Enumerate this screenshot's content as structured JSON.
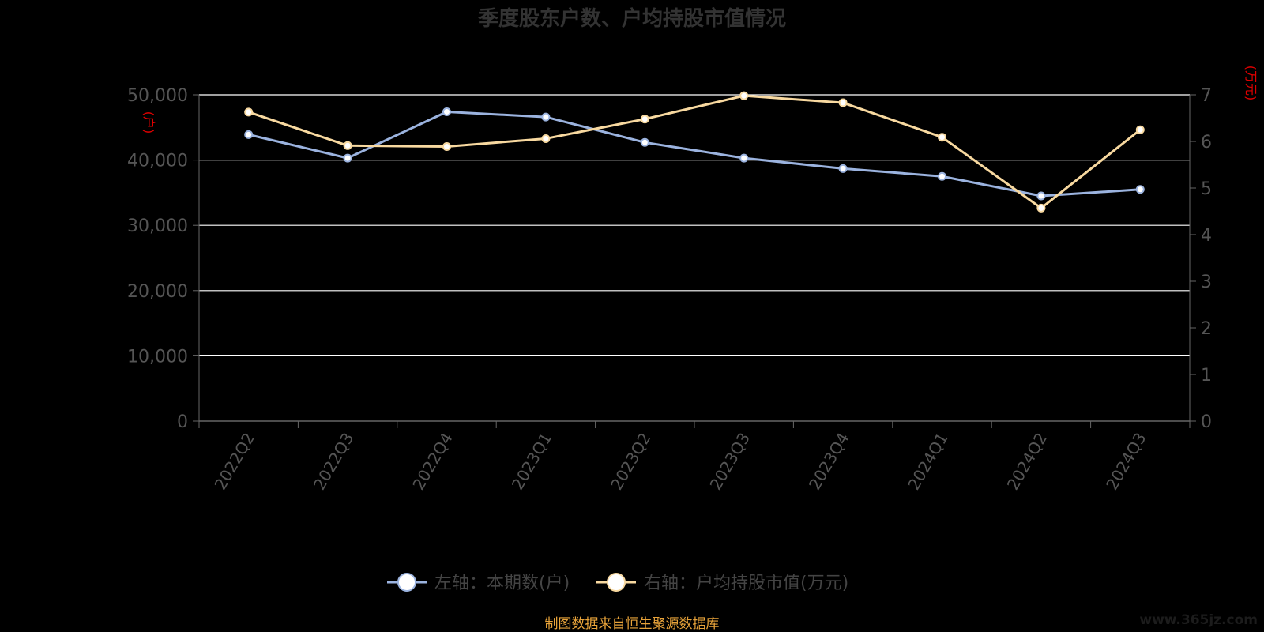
{
  "title": "季度股东户数、户均持股市值情况",
  "left_unit": "(户)",
  "right_unit": "(万元)",
  "source": "制图数据来自恒生聚源数据库",
  "watermark": "www.365jz.com",
  "colors": {
    "left_series": "#9bb3df",
    "right_series": "#f8d9a0",
    "grid": "#ffffff",
    "axis": "#666666",
    "unit": "#e00000",
    "source": "#e8a33a"
  },
  "chart_data": {
    "type": "line",
    "title": "季度股东户数、户均持股市值情况",
    "categories": [
      "2022Q2",
      "2022Q3",
      "2022Q4",
      "2023Q1",
      "2023Q2",
      "2023Q3",
      "2023Q4",
      "2024Q1",
      "2024Q2",
      "2024Q3"
    ],
    "y_left": {
      "ticks": [
        "0",
        "10,000",
        "20,000",
        "30,000",
        "40,000",
        "50,000"
      ],
      "ylim": [
        0,
        50000
      ],
      "unit": "(户)"
    },
    "y_right": {
      "ticks": [
        "0",
        "1",
        "2",
        "3",
        "4",
        "5",
        "6",
        "7"
      ],
      "ylim": [
        0,
        7
      ],
      "unit": "(万元)"
    },
    "grid": true,
    "legend_position": "bottom",
    "series": [
      {
        "name": "左轴：本期数(户)",
        "axis": "left",
        "values": [
          43900,
          40300,
          47400,
          46600,
          42700,
          40300,
          38700,
          37500,
          34500,
          35500
        ]
      },
      {
        "name": "右轴：户均持股市值(万元)",
        "axis": "right",
        "values": [
          6.63,
          5.91,
          5.89,
          6.06,
          6.48,
          6.98,
          6.83,
          6.09,
          4.57,
          6.25
        ]
      }
    ]
  }
}
